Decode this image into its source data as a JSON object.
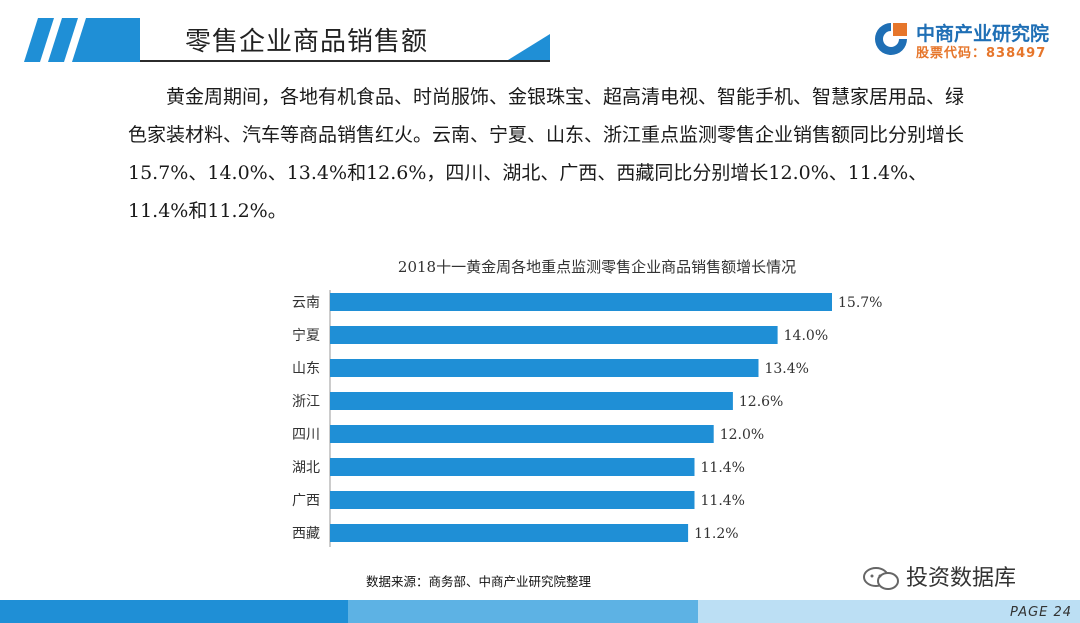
{
  "header": {
    "title": "零售企业商品销售额",
    "logo_name": "中商产业研究院",
    "logo_code": "股票代码：838497"
  },
  "body_text": "黄金周期间，各地有机食品、时尚服饰、金银珠宝、超高清电视、智能手机、智慧家居用品、绿色家装材料、汽车等商品销售红火。云南、宁夏、山东、浙江重点监测零售企业销售额同比分别增长15.7%、14.0%、13.4%和12.6%，四川、湖北、广西、西藏同比分别增长12.0%、11.4%、11.4%和11.2%。",
  "chart_data": {
    "type": "bar",
    "orientation": "horizontal",
    "title": "2018十一黄金周各地重点监测零售企业商品销售额增长情况",
    "categories": [
      "云南",
      "宁夏",
      "山东",
      "浙江",
      "四川",
      "湖北",
      "广西",
      "西藏"
    ],
    "values": [
      15.7,
      14.0,
      13.4,
      12.6,
      12.0,
      11.4,
      11.4,
      11.2
    ],
    "value_labels": [
      "15.7%",
      "14.0%",
      "13.4%",
      "12.6%",
      "12.0%",
      "11.4%",
      "11.4%",
      "11.2%"
    ],
    "xlim": [
      0,
      16.5
    ],
    "bar_color": "#1f8fd6",
    "grid": false
  },
  "source": "数据来源：商务部、中商产业研究院整理",
  "footer": {
    "wechat": "投资数据库",
    "page": "PAGE 24"
  }
}
